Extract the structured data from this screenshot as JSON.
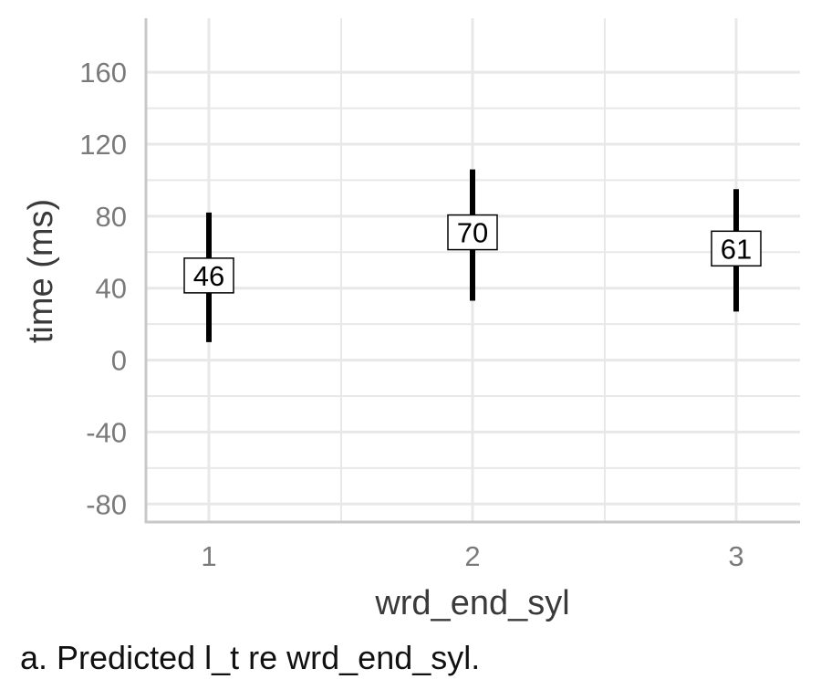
{
  "chart_data": {
    "type": "errorbar",
    "title": "",
    "xlabel": "wrd_end_syl",
    "ylabel": "time (ms)",
    "categories": [
      "1",
      "2",
      "3"
    ],
    "series": [
      {
        "values": [
          46,
          70,
          61
        ],
        "lower": [
          10,
          33,
          27
        ],
        "upper": [
          82,
          106,
          95
        ],
        "labels": [
          "46",
          "70",
          "61"
        ]
      }
    ],
    "ylim": [
      -90,
      190
    ],
    "yticks": [
      -80,
      -40,
      0,
      40,
      80,
      120,
      160
    ],
    "grid": true,
    "legend": "none",
    "colors": {
      "bar": "#000000",
      "grid": "#e8e8e8",
      "axis": "#c8c8c8"
    }
  },
  "caption": "a. Predicted l_t re wrd_end_syl."
}
